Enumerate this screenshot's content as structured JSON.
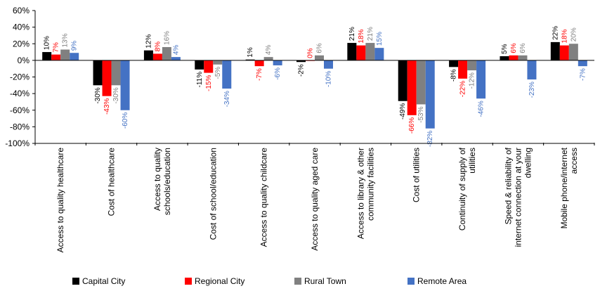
{
  "chart_data": {
    "type": "bar",
    "title": "",
    "xlabel": "",
    "ylabel": "",
    "ylim": [
      -100,
      60
    ],
    "y_ticks": [
      "60%",
      "40%",
      "20%",
      "0%",
      "-20%",
      "-40%",
      "-60%",
      "-80%",
      "-100%"
    ],
    "y_tick_values": [
      60,
      40,
      20,
      0,
      -20,
      -40,
      -60,
      -80,
      -100
    ],
    "grid": false,
    "legend_position": "bottom",
    "categories": [
      [
        "Access to quality healthcare"
      ],
      [
        "Cost of healthcare"
      ],
      [
        "Access to quality",
        "schools/education"
      ],
      [
        "Cost of school/education"
      ],
      [
        "Access to quality childcare"
      ],
      [
        "Access to quality aged care"
      ],
      [
        "Access to library & other",
        "community facilities"
      ],
      [
        "Cost of utilities"
      ],
      [
        "Continuity of supply of",
        "utilities"
      ],
      [
        "Speed & reliability of",
        "internet connection at your",
        "dwelling"
      ],
      [
        "Mobile phone/internet",
        "access"
      ]
    ],
    "series": [
      {
        "name": "Capital City",
        "color": "#000000",
        "values": [
          10,
          -30,
          12,
          -11,
          1,
          -2,
          21,
          -49,
          -8,
          5,
          22
        ],
        "labels": [
          "10%",
          "-30%",
          "12%",
          "-11%",
          "1%",
          "-2%",
          "21%",
          "-49%",
          "-8%",
          "5%",
          "22%"
        ]
      },
      {
        "name": "Regional City",
        "color": "#ff0000",
        "values": [
          7,
          -43,
          8,
          -15,
          -7,
          0,
          18,
          -66,
          -22,
          6,
          18
        ],
        "labels": [
          "7%",
          "-43%",
          "8%",
          "-15%",
          "-7%",
          "0%",
          "18%",
          "-66%",
          "-22%",
          "6%",
          "18%"
        ]
      },
      {
        "name": "Rural Town",
        "color": "#808080",
        "values": [
          13,
          -30,
          16,
          -5,
          4,
          6,
          21,
          -53,
          -12,
          6,
          20
        ],
        "labels": [
          "13%",
          "-30%",
          "16%",
          "-5%",
          "4%",
          "6%",
          "21%",
          "-53%",
          "-12%",
          "6%",
          "20%"
        ]
      },
      {
        "name": "Remote Area",
        "color": "#4472c4",
        "values": [
          9,
          -60,
          4,
          -34,
          -6,
          -10,
          15,
          -82,
          -46,
          -23,
          -7
        ],
        "labels": [
          "9%",
          "-60%",
          "4%",
          "-34%",
          "-6%",
          "-10%",
          "15%",
          "-82%",
          "-46%",
          "-23%",
          "-7%"
        ]
      }
    ]
  }
}
